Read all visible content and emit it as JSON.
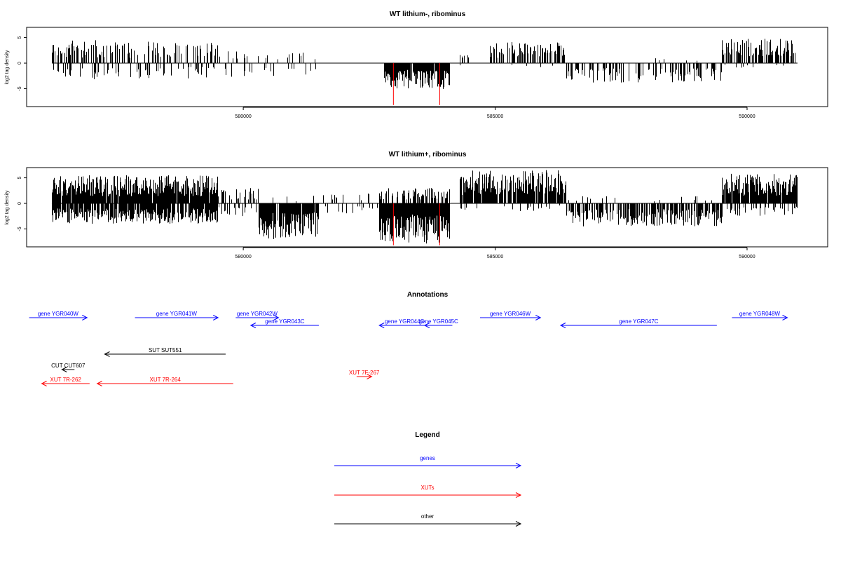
{
  "chart_data": [
    {
      "type": "bar",
      "title": "WT lithium-, ribominus",
      "ylabel": "log2 tag density",
      "xlim": [
        575700,
        591600
      ],
      "ylim": [
        -8.5,
        7
      ],
      "xticks": [
        580000,
        585000,
        590000
      ],
      "yticks": [
        5,
        0,
        -5
      ],
      "highlight_color": "#ff0000",
      "highlight_positions": [
        582980,
        583900
      ],
      "segments": [
        {
          "x_start": 576200,
          "x_end": 577400,
          "plus_density": 0.45,
          "plus_max": 4.5,
          "minus_density": 0.25,
          "minus_max": 3.2,
          "seed": 11
        },
        {
          "x_start": 577400,
          "x_end": 579500,
          "plus_density": 0.35,
          "plus_max": 4.2,
          "minus_density": 0.22,
          "minus_max": 3.0,
          "seed": 12
        },
        {
          "x_start": 579500,
          "x_end": 581600,
          "plus_density": 0.12,
          "plus_max": 2.5,
          "minus_density": 0.12,
          "minus_max": 2.8,
          "seed": 13
        },
        {
          "x_start": 582800,
          "x_end": 584100,
          "plus_density": 0.0,
          "plus_max": 0,
          "minus_density": 0.9,
          "minus_max": 5.2,
          "seed": 14
        },
        {
          "x_start": 584300,
          "x_end": 584500,
          "plus_density": 0.3,
          "plus_max": 2.2,
          "minus_density": 0.1,
          "minus_max": 1.0,
          "seed": 15
        },
        {
          "x_start": 584900,
          "x_end": 586400,
          "plus_density": 0.5,
          "plus_max": 4.2,
          "minus_density": 0.05,
          "minus_max": 1.0,
          "seed": 16
        },
        {
          "x_start": 586400,
          "x_end": 589500,
          "plus_density": 0.02,
          "plus_max": 1.0,
          "minus_density": 0.4,
          "minus_max": 3.8,
          "seed": 17
        },
        {
          "x_start": 589500,
          "x_end": 591000,
          "plus_density": 0.6,
          "plus_max": 4.8,
          "minus_density": 0.05,
          "minus_max": 1.0,
          "seed": 18
        }
      ]
    },
    {
      "type": "bar",
      "title": "WT lithium+, ribominus",
      "ylabel": "log2 tag density",
      "xlim": [
        575700,
        591600
      ],
      "ylim": [
        -8.5,
        7
      ],
      "xticks": [
        580000,
        585000,
        590000
      ],
      "yticks": [
        5,
        0,
        -5
      ],
      "highlight_color": "#ff0000",
      "highlight_positions": [
        582980,
        583900
      ],
      "segments": [
        {
          "x_start": 576200,
          "x_end": 579500,
          "plus_density": 0.95,
          "plus_max": 5.5,
          "minus_density": 0.85,
          "minus_max": 4.0,
          "seed": 21
        },
        {
          "x_start": 579500,
          "x_end": 580300,
          "plus_density": 0.3,
          "plus_max": 3.0,
          "minus_density": 0.3,
          "minus_max": 2.5,
          "seed": 22
        },
        {
          "x_start": 580300,
          "x_end": 581500,
          "plus_density": 0.05,
          "plus_max": 1.5,
          "minus_density": 0.95,
          "minus_max": 7.0,
          "seed": 23
        },
        {
          "x_start": 581500,
          "x_end": 582700,
          "plus_density": 0.1,
          "plus_max": 2.0,
          "minus_density": 0.15,
          "minus_max": 2.0,
          "seed": 24
        },
        {
          "x_start": 582700,
          "x_end": 584100,
          "plus_density": 0.5,
          "plus_max": 3.0,
          "minus_density": 1.0,
          "minus_max": 8.0,
          "seed": 25
        },
        {
          "x_start": 584300,
          "x_end": 586400,
          "plus_density": 0.9,
          "plus_max": 6.5,
          "minus_density": 0.1,
          "minus_max": 1.5,
          "seed": 26
        },
        {
          "x_start": 586400,
          "x_end": 589500,
          "plus_density": 0.05,
          "plus_max": 1.5,
          "minus_density": 0.7,
          "minus_max": 4.5,
          "seed": 27
        },
        {
          "x_start": 589500,
          "x_end": 591000,
          "plus_density": 0.95,
          "plus_max": 5.8,
          "minus_density": 0.3,
          "minus_max": 2.5,
          "seed": 28
        }
      ]
    }
  ],
  "annotations": {
    "title": "Annotations",
    "xlim": [
      575700,
      591600
    ],
    "items": [
      {
        "label": "gene YGR040W",
        "start": 575750,
        "end": 576900,
        "strand": "+",
        "row": 0,
        "color": "#0000ff"
      },
      {
        "label": "gene YGR041W",
        "start": 577850,
        "end": 579500,
        "strand": "+",
        "row": 0,
        "color": "#0000ff"
      },
      {
        "label": "gene YGR042W",
        "start": 579850,
        "end": 580700,
        "strand": "+",
        "row": 0,
        "color": "#0000ff"
      },
      {
        "label": "gene YGR043C",
        "start": 580150,
        "end": 581500,
        "strand": "-",
        "row": 1,
        "color": "#0000ff"
      },
      {
        "label": "gene YGR044C",
        "start": 582700,
        "end": 583700,
        "strand": "-",
        "row": 1,
        "color": "#0000ff"
      },
      {
        "label": "gene YGR045C",
        "start": 583600,
        "end": 584150,
        "strand": "-",
        "row": 1,
        "color": "#0000ff"
      },
      {
        "label": "gene YGR046W",
        "start": 584700,
        "end": 585900,
        "strand": "+",
        "row": 0,
        "color": "#0000ff"
      },
      {
        "label": "gene YGR047C",
        "start": 586300,
        "end": 589400,
        "strand": "-",
        "row": 1,
        "color": "#0000ff"
      },
      {
        "label": "gene YGR048W",
        "start": 589700,
        "end": 590800,
        "strand": "+",
        "row": 0,
        "color": "#0000ff"
      },
      {
        "label": "SUT SUT551",
        "start": 577250,
        "end": 579650,
        "strand": "-",
        "row": 2,
        "color": "#000000"
      },
      {
        "label": "CUT CUT607",
        "start": 576400,
        "end": 576650,
        "strand": "-",
        "row": 3,
        "color": "#000000"
      },
      {
        "label": "XUT 7R-262",
        "start": 576000,
        "end": 576950,
        "strand": "-",
        "row": 4,
        "color": "#ff0000"
      },
      {
        "label": "XUT 7R-264",
        "start": 577100,
        "end": 579800,
        "strand": "-",
        "row": 4,
        "color": "#ff0000"
      },
      {
        "label": "XUT 7F-267",
        "start": 582250,
        "end": 582550,
        "strand": "+",
        "row": 5,
        "color": "#ff0000"
      }
    ]
  },
  "legend": {
    "title": "Legend",
    "entries": [
      {
        "label": "genes",
        "color": "#0000ff"
      },
      {
        "label": "XUTs",
        "color": "#ff0000"
      },
      {
        "label": "other",
        "color": "#000000"
      }
    ]
  }
}
